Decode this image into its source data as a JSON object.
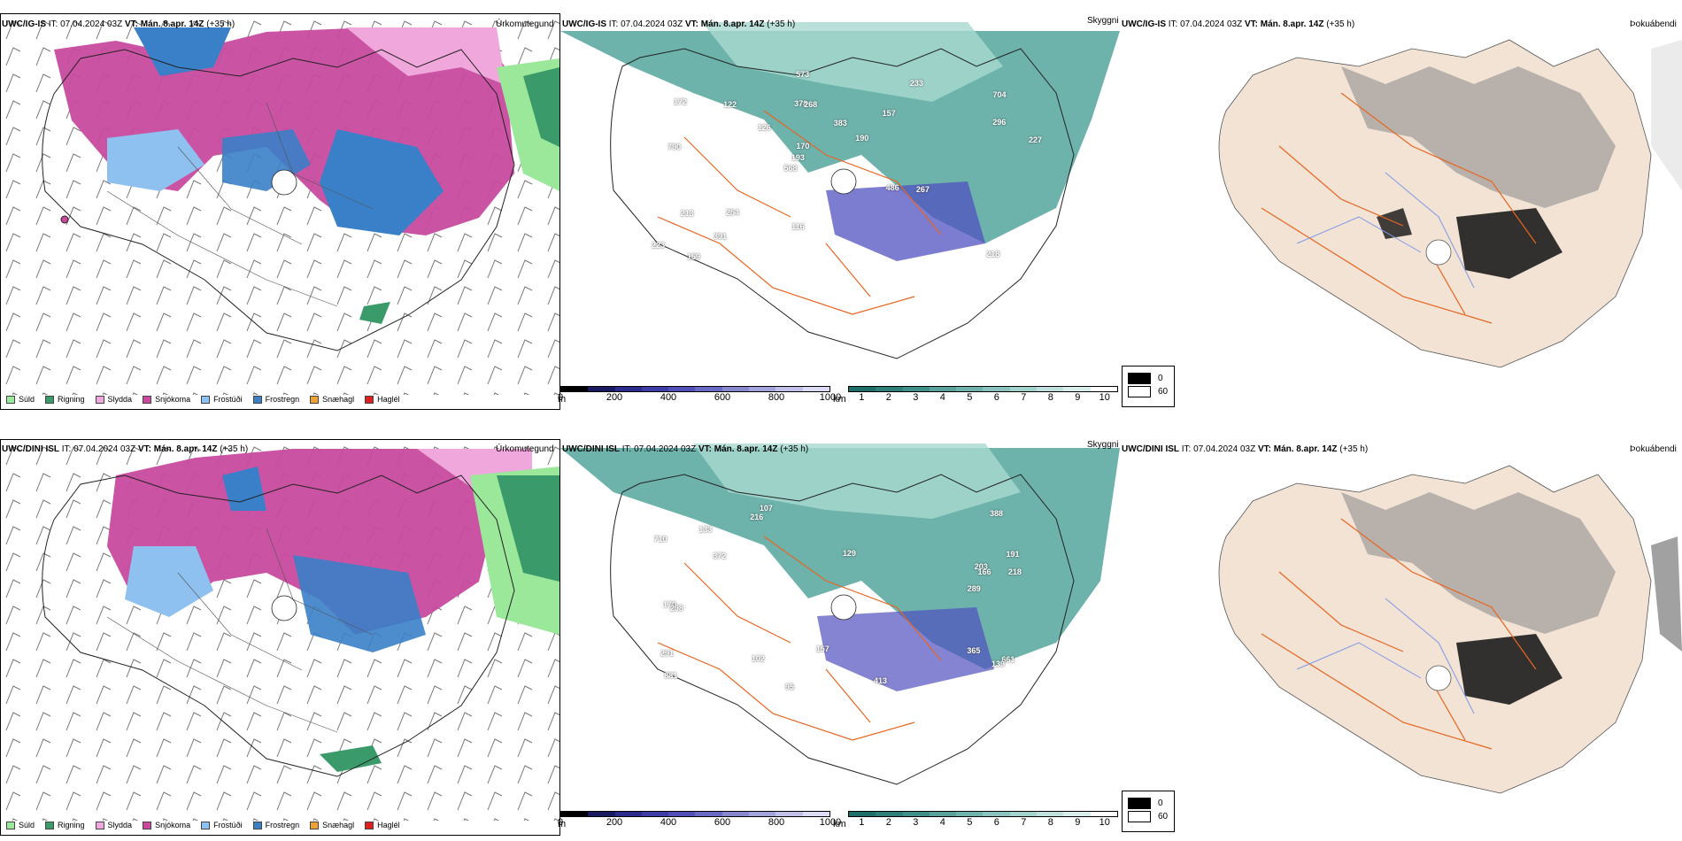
{
  "panels": {
    "p1": {
      "model": "UWC/IG-IS",
      "it": "IT: 07.04.2024 03Z",
      "vt_label": "VT:",
      "vt_value": "Mán. 8.apr. 14Z",
      "lead": "(+35 h)",
      "title": "Úrkomutegund"
    },
    "p2": {
      "model": "UWC/IG-IS",
      "it": "IT: 07.04.2024 03Z",
      "vt_label": "VT:",
      "vt_value": "Mán. 8.apr. 14Z",
      "lead": "(+35 h)",
      "title": "Skyggni"
    },
    "p3": {
      "model": "UWC/IG-IS",
      "it": "IT: 07.04.2024 03Z",
      "vt_label": "VT:",
      "vt_value": "Mán. 8.apr. 14Z",
      "lead": "(+35 h)",
      "title": "Þokuábendi"
    },
    "p4": {
      "model": "UWC/DINI ISL",
      "it": "IT: 07.04.2024 03Z",
      "vt_label": "VT:",
      "vt_value": "Mán. 8.apr. 14Z",
      "lead": "(+35 h)",
      "title": "Úrkomutegund"
    },
    "p5": {
      "model": "UWC/DINI ISL",
      "it": "IT: 07.04.2024 03Z",
      "vt_label": "VT:",
      "vt_value": "Mán. 8.apr. 14Z",
      "lead": "(+35 h)",
      "title": "Skyggni"
    },
    "p6": {
      "model": "UWC/DINI ISL",
      "it": "IT: 07.04.2024 03Z",
      "vt_label": "VT:",
      "vt_value": "Mán. 8.apr. 14Z",
      "lead": "(+35 h)",
      "title": "Þokuábendi"
    }
  },
  "precip_legend": [
    {
      "label": "Súld",
      "color": "#9be89b"
    },
    {
      "label": "Rigning",
      "color": "#3a9a6a"
    },
    {
      "label": "Slydda",
      "color": "#f0a8dc"
    },
    {
      "label": "Snjókoma",
      "color": "#c84a9e"
    },
    {
      "label": "Frostúði",
      "color": "#8ec0f0"
    },
    {
      "label": "Frostregn",
      "color": "#3a80c8"
    },
    {
      "label": "Snæhagl",
      "color": "#f0a030"
    },
    {
      "label": "Haglél",
      "color": "#e02020"
    }
  ],
  "ceiling_bar": {
    "unit": "m",
    "ticks": [
      "0",
      "200",
      "400",
      "600",
      "800",
      "1000"
    ]
  },
  "vis_bar": {
    "unit": "km",
    "ticks": [
      "1",
      "2",
      "3",
      "4",
      "5",
      "6",
      "7",
      "8",
      "9",
      "10"
    ]
  },
  "cloud_legend": {
    "v0": "0",
    "v60": "60"
  },
  "ceiling_labels_top": [
    "218",
    "790",
    "704",
    "568",
    "157",
    "159",
    "378",
    "383",
    "213",
    "126",
    "223",
    "391",
    "268",
    "190",
    "267",
    "172",
    "573",
    "227",
    "486",
    "296",
    "193",
    "116",
    "170",
    "122",
    "233",
    "254"
  ],
  "ceiling_labels_bottom": [
    "365",
    "191",
    "661",
    "129",
    "881",
    "107",
    "203",
    "102",
    "388",
    "372",
    "218",
    "710",
    "289",
    "95",
    "291",
    "133",
    "139",
    "216",
    "157",
    "166",
    "170",
    "298",
    "413"
  ],
  "colors": {
    "land": "#f2e3d5",
    "roads": "#e8651f",
    "rivers": "#7f99e8",
    "ceiling": "#5050c0",
    "vis": "#3c9a90"
  }
}
